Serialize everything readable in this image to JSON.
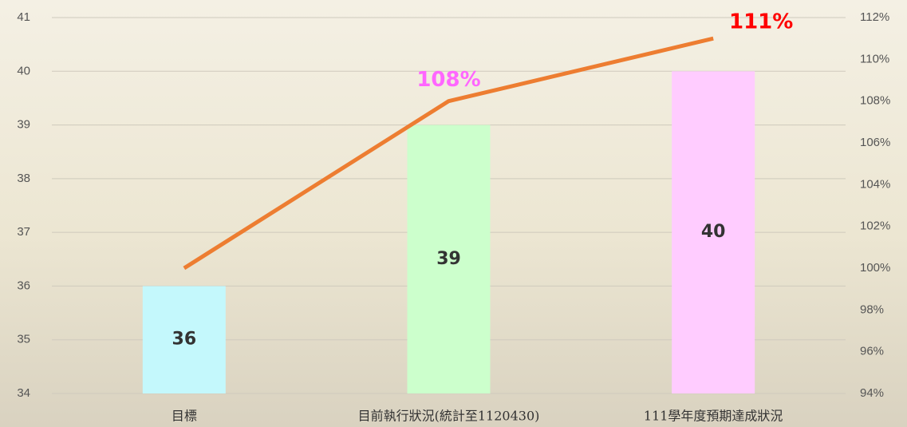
{
  "chart_data": {
    "type": "bar",
    "categories": [
      "目標",
      "目前執行狀況(統計至1120430)",
      "111學年度預期達成狀況"
    ],
    "series": [
      {
        "type": "bar",
        "colors": [
          "#c4f8fc",
          "#ccffcc",
          "#ffccff"
        ],
        "values": [
          36,
          39,
          40
        ]
      },
      {
        "type": "line",
        "axis": "y2",
        "color": "#ed7d31",
        "values": [
          100,
          108,
          111
        ],
        "value_labels": [
          null,
          "108%",
          "111%"
        ],
        "label_colors": [
          null,
          "#ff66ff",
          "#ff0000"
        ]
      }
    ],
    "ylim": [
      34,
      41
    ],
    "yticks": [
      34,
      35,
      36,
      37,
      38,
      39,
      40,
      41
    ],
    "y2lim": [
      94,
      112
    ],
    "y2ticks": [
      {
        "value": 94,
        "label": "94%"
      },
      {
        "value": 96,
        "label": "96%"
      },
      {
        "value": 98,
        "label": "98%"
      },
      {
        "value": 100,
        "label": "100%"
      },
      {
        "value": 102,
        "label": "102%"
      },
      {
        "value": 104,
        "label": "104%"
      },
      {
        "value": 106,
        "label": "106%"
      },
      {
        "value": 108,
        "label": "108%"
      },
      {
        "value": 110,
        "label": "110%"
      },
      {
        "value": 112,
        "label": "112%"
      }
    ],
    "grid": true
  }
}
